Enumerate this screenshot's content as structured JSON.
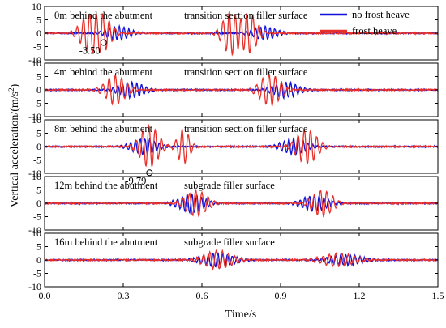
{
  "chart_data": {
    "type": "line",
    "ylabel_main": "Vertical acceleration/(m/s",
    "ylabel_sup": "2",
    "ylabel_close": ")",
    "xlabel": "Time/s",
    "xlim": [
      0.0,
      1.5
    ],
    "xticks": [
      "0.0",
      "0.3",
      "0.6",
      "0.9",
      "1.2",
      "1.5"
    ],
    "xtick_values": [
      0.0,
      0.3,
      0.6,
      0.9,
      1.2,
      1.5
    ],
    "ylim": [
      -10,
      10
    ],
    "colors": {
      "no_frost_heave": "#1010d8",
      "frost_heave": "#e8302a"
    },
    "legend": [
      {
        "name": "no frost heave",
        "color": "#1010d8"
      },
      {
        "name": "frost heave",
        "color": "#e8302a"
      }
    ],
    "panels": [
      {
        "location": "0m behind the abutment",
        "surface": "transition section filler surface",
        "yticks": [
          "10",
          "5",
          "0",
          "-5",
          "-10"
        ],
        "ytick_values": [
          10,
          5,
          0,
          -5,
          -10
        ],
        "marker": {
          "x": 0.225,
          "y": -3.5,
          "label": "-3.50"
        },
        "bursts_red": [
          {
            "t": 0.17,
            "amp": 6.5,
            "w": 0.045
          },
          {
            "t": 0.225,
            "amp": 6.0,
            "w": 0.04
          },
          {
            "t": 0.71,
            "amp": 8.0,
            "w": 0.04
          },
          {
            "t": 0.78,
            "amp": 7.5,
            "w": 0.04
          }
        ],
        "bursts_blue": [
          {
            "t": 0.28,
            "amp": 2.5,
            "w": 0.06
          },
          {
            "t": 0.84,
            "amp": 2.5,
            "w": 0.06
          }
        ]
      },
      {
        "location": "4m behind the abutment",
        "surface": "transition section filler surface",
        "yticks": [
          "10",
          "5",
          "0",
          "-5",
          "-10"
        ],
        "ytick_values": [
          10,
          5,
          0,
          -5,
          -10
        ],
        "bursts_red": [
          {
            "t": 0.27,
            "amp": 5.5,
            "w": 0.05
          },
          {
            "t": 0.86,
            "amp": 6.0,
            "w": 0.05
          }
        ],
        "bursts_blue": [
          {
            "t": 0.33,
            "amp": 3.0,
            "w": 0.06
          },
          {
            "t": 0.92,
            "amp": 3.0,
            "w": 0.06
          }
        ]
      },
      {
        "location": "8m behind the abutment",
        "surface": "transition section filler surface",
        "yticks": [
          "10",
          "5",
          "0",
          "-5",
          "-10"
        ],
        "ytick_values": [
          10,
          5,
          0,
          -5,
          -10
        ],
        "marker": {
          "x": 0.4,
          "y": -9.79,
          "label": "-9.79"
        },
        "bursts_red": [
          {
            "t": 0.4,
            "amp": 8.0,
            "w": 0.045
          },
          {
            "t": 0.53,
            "amp": 6.5,
            "w": 0.03
          },
          {
            "t": 1.0,
            "amp": 6.5,
            "w": 0.05
          }
        ],
        "bursts_blue": [
          {
            "t": 0.38,
            "amp": 3.0,
            "w": 0.06
          },
          {
            "t": 0.95,
            "amp": 3.0,
            "w": 0.06
          }
        ]
      },
      {
        "location": "12m behind the abutment",
        "surface": "subgrade filler surface",
        "yticks": [
          "10",
          "5",
          "0",
          "-5",
          "-10"
        ],
        "ytick_values": [
          10,
          5,
          0,
          -5,
          -10
        ],
        "bursts_red": [
          {
            "t": 0.58,
            "amp": 5.0,
            "w": 0.05
          },
          {
            "t": 1.06,
            "amp": 5.0,
            "w": 0.05
          }
        ],
        "bursts_blue": [
          {
            "t": 0.56,
            "amp": 3.5,
            "w": 0.06
          },
          {
            "t": 1.03,
            "amp": 3.0,
            "w": 0.06
          }
        ]
      },
      {
        "location": "16m behind the abutment",
        "surface": "subgrade filler surface",
        "yticks": [
          "10",
          "5",
          "0",
          "-5",
          "-10"
        ],
        "ytick_values": [
          10,
          5,
          0,
          -5,
          -10
        ],
        "bursts_red": [
          {
            "t": 0.66,
            "amp": 3.5,
            "w": 0.07
          },
          {
            "t": 1.12,
            "amp": 2.5,
            "w": 0.08
          }
        ],
        "bursts_blue": [
          {
            "t": 0.66,
            "amp": 2.5,
            "w": 0.08
          },
          {
            "t": 1.15,
            "amp": 2.0,
            "w": 0.08
          }
        ]
      }
    ]
  }
}
